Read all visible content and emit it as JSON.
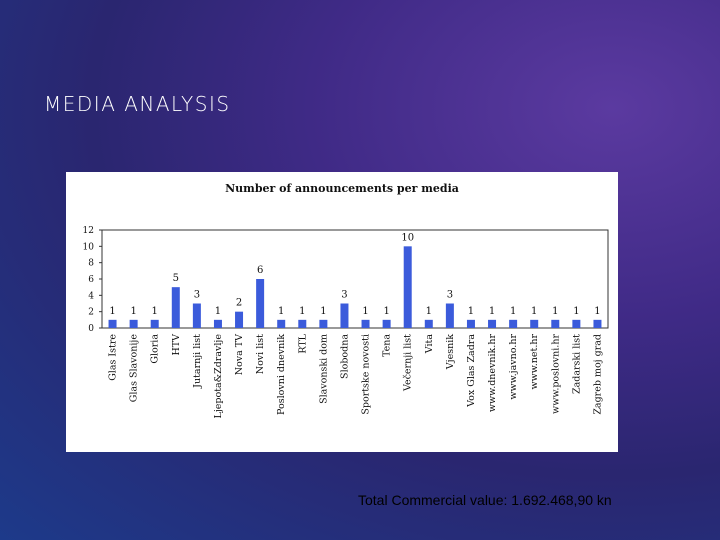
{
  "slide": {
    "title": "MEDIA ANALYSIS",
    "footer": "Total Commercial value: 1.692.468,90 kn"
  },
  "colors": {
    "bar": "#3b5bdb",
    "axis": "#333333"
  },
  "chart_data": {
    "type": "bar",
    "title": "Number of announcements per media",
    "xlabel": "",
    "ylabel": "",
    "ylim": [
      0,
      12
    ],
    "yticks": [
      0,
      2,
      4,
      6,
      8,
      10,
      12
    ],
    "grid": false,
    "categories": [
      "Glas Istre",
      "Glas Slavonije",
      "Gloria",
      "HTV",
      "Jutarnji list",
      "Ljepota&Zdravlje",
      "Nova TV",
      "Novi list",
      "Poslovni dnevnik",
      "RTL",
      "Slavonski dom",
      "Slobodna",
      "Sportske novosti",
      "Tena",
      "Večernji list",
      "Vita",
      "Vjesnik",
      "Vox Glas Zadra",
      "www.dnevnik.hr",
      "www.javno.hr",
      "www.net.hr",
      "www.poslovni.hr",
      "Zadarski list",
      "Zagreb moj grad"
    ],
    "values": [
      1,
      1,
      1,
      5,
      3,
      1,
      2,
      6,
      1,
      1,
      1,
      3,
      1,
      1,
      10,
      1,
      3,
      1,
      1,
      1,
      1,
      1,
      1,
      1
    ]
  }
}
